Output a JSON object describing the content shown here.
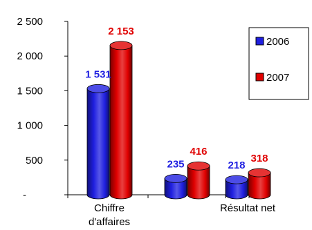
{
  "chart_data": {
    "type": "bar",
    "style": "3d-cylinder",
    "title": "",
    "xlabel": "",
    "ylabel": "",
    "categories": [
      "Chiffre d'affaires",
      "",
      "Résultat net"
    ],
    "series": [
      {
        "name": "2006",
        "color": "#1f1fe0",
        "values": [
          1531,
          235,
          218
        ],
        "labels": [
          "1 531",
          "235",
          "218"
        ]
      },
      {
        "name": "2007",
        "color": "#e00000",
        "values": [
          2153,
          416,
          318
        ],
        "labels": [
          "2 153",
          "416",
          "318"
        ]
      }
    ],
    "ylim": [
      0,
      2500
    ],
    "yticks": [
      0,
      500,
      1000,
      1500,
      2000,
      2500
    ],
    "ytick_labels": [
      "-",
      "500",
      "1 000",
      "1 500",
      "2 000",
      "2 500"
    ],
    "grid": false,
    "legend": "right",
    "label_colors": {
      "2006": "#1f1fe0",
      "2007": "#e00000"
    }
  }
}
